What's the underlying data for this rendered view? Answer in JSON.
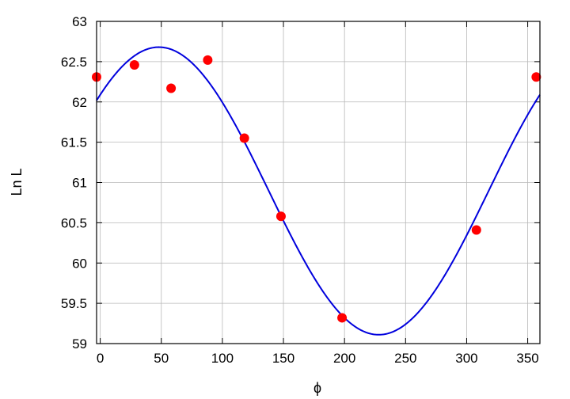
{
  "chart_data": {
    "type": "scatter",
    "xlabel": "ϕ",
    "ylabel": "Ln L",
    "xlim": [
      -3,
      360
    ],
    "ylim": [
      59,
      63
    ],
    "xticks": [
      0,
      50,
      100,
      150,
      200,
      250,
      300,
      350
    ],
    "yticks": [
      59,
      59.5,
      60,
      60.5,
      61,
      61.5,
      62,
      62.5,
      63
    ],
    "grid": true,
    "series": [
      {
        "kind": "points",
        "color": "#ff0000",
        "x": [
          -3,
          28,
          58,
          88,
          118,
          148,
          198,
          308,
          357
        ],
        "y": [
          62.31,
          62.46,
          62.17,
          62.52,
          61.55,
          60.58,
          59.32,
          60.41,
          62.31
        ]
      },
      {
        "kind": "curve",
        "color": "#0000dd",
        "model": "sinusoid",
        "mean": 60.895,
        "amplitude": 1.785,
        "peak_x": 48,
        "period": 360
      }
    ]
  }
}
